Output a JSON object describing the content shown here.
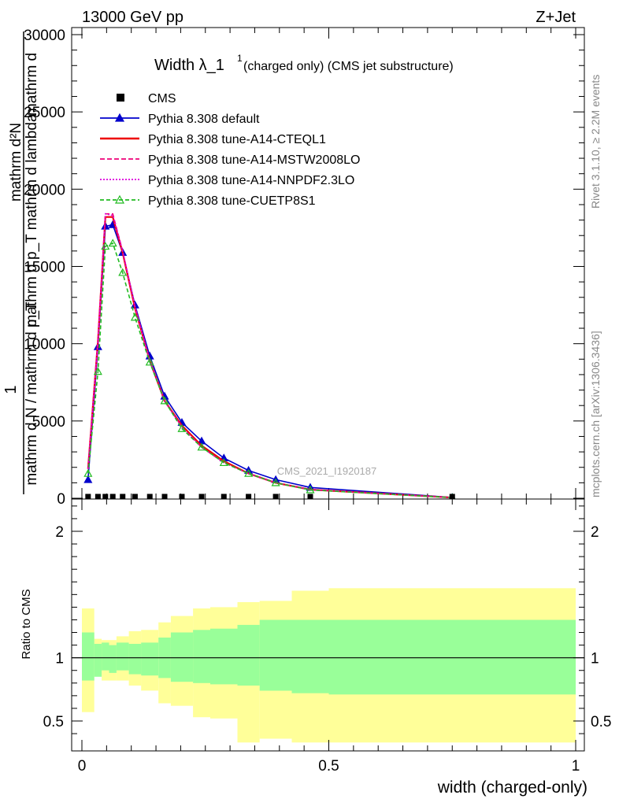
{
  "header": {
    "left": "13000 GeV pp",
    "right": "Z+Jet"
  },
  "side_labels": {
    "rivet": "Rivet 3.1.10, ≥ 2.2M events",
    "mcplots": "mcplots.cern.ch [arXiv:1306.3436]"
  },
  "watermark": "CMS_2021_I1920187",
  "colors": {
    "cms": "#000000",
    "default": "#0000cc",
    "cteql1": "#ee0000",
    "mstw": "#ee0077",
    "nnpdf": "#dd00dd",
    "cuetp8s1": "#22bb22",
    "band_inner": "#99ff99",
    "band_outer": "#ffff99"
  },
  "chart_data": [
    {
      "type": "line",
      "title_main": "Width λ_1",
      "title_sup": "1",
      "title_rest": " (charged only) (CMS jet substructure)",
      "ylabel_lines": [
        "mathrm d N",
        "mathrm d p",
        "T",
        "mathrm d lambda",
        "mathrm d",
        "mathrm d N / mathrm d p",
        "1",
        "mathrm d",
        "mathrm d"
      ],
      "ylabel_top": "mathrm d",
      "ylabel_frac_num": "mathrm d²N",
      "ylabel_frac_den": "mathrm d p_T mathrm d lambda",
      "ylabel_one": "1",
      "ylabel_bottom": "mathrm d N / mathrm d p_T",
      "ylim": [
        0,
        30000
      ],
      "yticks": [
        0,
        5000,
        10000,
        15000,
        20000,
        25000,
        30000
      ],
      "ytick_labels": [
        "0",
        "5000",
        "10000",
        "15000",
        "20000",
        "25000",
        "30000"
      ],
      "xlim": [
        0,
        1
      ],
      "legend_position": "top-left",
      "x": [
        0.0125,
        0.0325,
        0.0475,
        0.0625,
        0.0825,
        0.1075,
        0.1375,
        0.1675,
        0.2025,
        0.2425,
        0.2875,
        0.3375,
        0.3925,
        0.4625,
        0.75
      ],
      "cms": {
        "name": "CMS",
        "x": [
          0.0125,
          0.0325,
          0.0475,
          0.0625,
          0.0825,
          0.1075,
          0.1375,
          0.1675,
          0.2025,
          0.2425,
          0.2875,
          0.3375,
          0.3925,
          0.4625,
          0.75
        ],
        "values": [
          1,
          1,
          1,
          1,
          1,
          1,
          1,
          1,
          1,
          1,
          1,
          1,
          1,
          1,
          1
        ]
      },
      "series": [
        {
          "name": "Pythia 8.308 default",
          "key": "default",
          "marker": "triangle-filled",
          "dash": "",
          "values": [
            1200,
            9800,
            17600,
            17700,
            15900,
            12500,
            9200,
            6600,
            4900,
            3700,
            2600,
            1800,
            1200,
            700,
            50
          ]
        },
        {
          "name": "Pythia 8.308 tune-A14-CTEQL1",
          "key": "cteql1",
          "marker": "",
          "dash": "",
          "values": [
            1900,
            10200,
            18200,
            18200,
            15900,
            12300,
            8900,
            6300,
            4700,
            3400,
            2400,
            1600,
            1000,
            560,
            40
          ]
        },
        {
          "name": "Pythia 8.308 tune-A14-MSTW2008LO",
          "key": "mstw",
          "marker": "",
          "dash": "6,3",
          "values": [
            1900,
            10200,
            18400,
            18400,
            16000,
            12400,
            8900,
            6300,
            4600,
            3300,
            2300,
            1600,
            1000,
            560,
            40
          ]
        },
        {
          "name": "Pythia 8.308 tune-A14-NNPDF2.3LO",
          "key": "nnpdf",
          "marker": "",
          "dash": "2,2",
          "values": [
            1900,
            10200,
            18400,
            18300,
            16000,
            12400,
            8900,
            6300,
            4600,
            3300,
            2300,
            1600,
            1000,
            560,
            40
          ]
        },
        {
          "name": "Pythia 8.308 tune-CUETP8S1",
          "key": "cuetp8s1",
          "marker": "triangle-open",
          "dash": "5,3",
          "values": [
            1600,
            8200,
            16300,
            16500,
            14600,
            11700,
            8800,
            6300,
            4500,
            3300,
            2300,
            1600,
            1000,
            540,
            40
          ]
        }
      ]
    },
    {
      "type": "area",
      "ylabel": "Ratio to CMS",
      "xlabel": "width (charged-only)",
      "ylim": [
        0.34,
        2.3
      ],
      "yticks": [
        0.5,
        1,
        2
      ],
      "ytick_labels": [
        "0.5",
        "1",
        "2"
      ],
      "xticks": [
        0,
        0.5,
        1
      ],
      "xtick_labels": [
        "0",
        "0.5",
        "1"
      ],
      "bin_edges": [
        0.0,
        0.025,
        0.04,
        0.055,
        0.07,
        0.095,
        0.12,
        0.155,
        0.18,
        0.225,
        0.26,
        0.315,
        0.36,
        0.425,
        0.5,
        1.0
      ],
      "inner_band": {
        "low": [
          0.82,
          0.85,
          0.9,
          0.88,
          0.9,
          0.87,
          0.86,
          0.84,
          0.81,
          0.8,
          0.79,
          0.78,
          0.74,
          0.72,
          0.71
        ],
        "high": [
          1.2,
          1.11,
          1.12,
          1.1,
          1.12,
          1.11,
          1.12,
          1.16,
          1.2,
          1.22,
          1.23,
          1.26,
          1.3,
          1.3,
          1.3
        ]
      },
      "outer_band": {
        "low": [
          0.57,
          0.87,
          0.82,
          0.82,
          0.82,
          0.78,
          0.74,
          0.64,
          0.62,
          0.53,
          0.52,
          0.33,
          0.36,
          0.33,
          0.33
        ],
        "high": [
          1.39,
          1.15,
          1.14,
          1.14,
          1.17,
          1.21,
          1.22,
          1.28,
          1.33,
          1.39,
          1.4,
          1.44,
          1.45,
          1.53,
          1.55
        ]
      },
      "reference_line": 1
    }
  ]
}
